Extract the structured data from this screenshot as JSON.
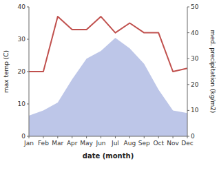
{
  "chart_data": {
    "type": "line",
    "categories": [
      "Jan",
      "Feb",
      "Mar",
      "Apr",
      "May",
      "Jun",
      "Jul",
      "Aug",
      "Sep",
      "Oct",
      "Nov",
      "Dec"
    ],
    "xlabel": "date (month)",
    "ylabel": "max temp (C)",
    "y2label": "med. precipitation (kg/m2)",
    "series": [
      {
        "type": "area",
        "axis": "y2",
        "color": "#bdc6e8",
        "values": [
          8,
          10,
          13,
          22,
          30,
          33,
          38,
          34,
          28,
          18,
          10,
          9
        ]
      },
      {
        "type": "line",
        "color": "#c0504d",
        "values": [
          20,
          20,
          37,
          33,
          33,
          37,
          32,
          35,
          32,
          32,
          20,
          21
        ]
      }
    ],
    "ylim": [
      0,
      40
    ],
    "yticks": [
      0,
      10,
      20,
      30,
      40
    ],
    "y2lim": [
      0,
      50
    ],
    "y2ticks": [
      0,
      10,
      20,
      30,
      40,
      50
    ],
    "grid": false
  }
}
